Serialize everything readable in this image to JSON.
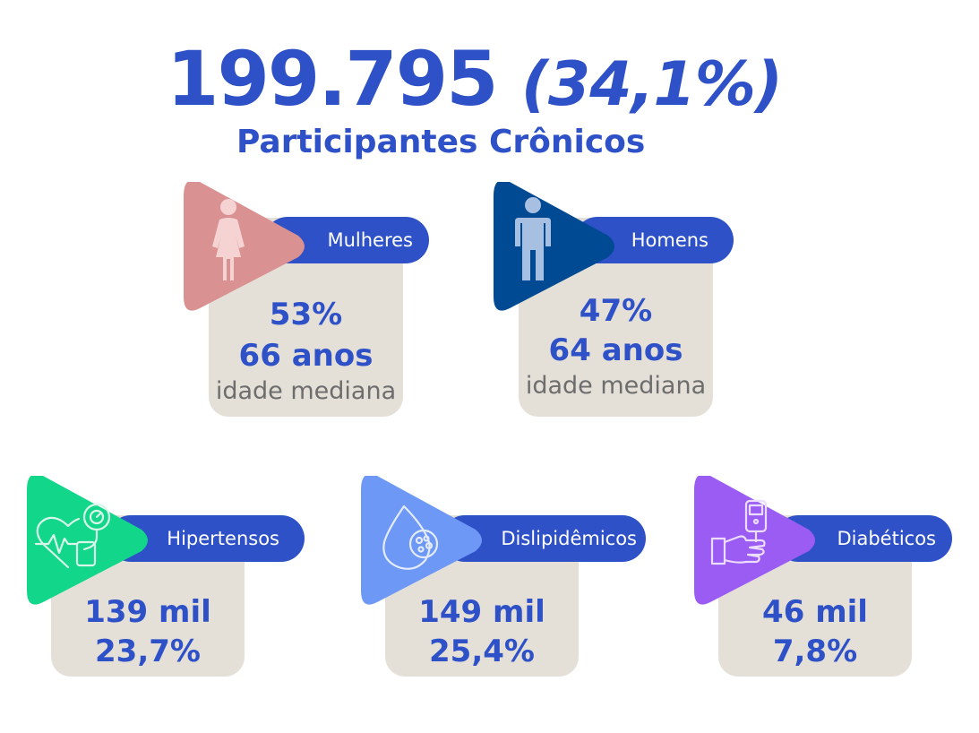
{
  "header": {
    "total": "199.795",
    "percent": "(34,1%)",
    "subtitle": "Participantes Crônicos"
  },
  "colors": {
    "blue": "#2e51c8",
    "card_bg": "#e4e0d8",
    "mulheres": "#d99191",
    "homens": "#004a93",
    "hipertensos": "#12d68a",
    "dislipidemicos": "#6e98f5",
    "diabeticos": "#9a5cf2"
  },
  "cards": {
    "mulheres": {
      "label": "Mulheres",
      "line1": "53%",
      "line2": "66 anos",
      "note": "idade mediana",
      "icon": "woman-icon"
    },
    "homens": {
      "label": "Homens",
      "line1": "47%",
      "line2": "64 anos",
      "note": "idade mediana",
      "icon": "man-icon"
    },
    "hipertensos": {
      "label": "Hipertensos",
      "line1": "139 mil",
      "line2": "23,7%",
      "icon": "heart-pressure-icon"
    },
    "dislipidemicos": {
      "label": "Dislipidêmicos",
      "line1": "149 mil",
      "line2": "25,4%",
      "icon": "blood-drop-icon"
    },
    "diabeticos": {
      "label": "Diabéticos",
      "line1": "46 mil",
      "line2": "7,8%",
      "icon": "glucometer-icon"
    }
  }
}
